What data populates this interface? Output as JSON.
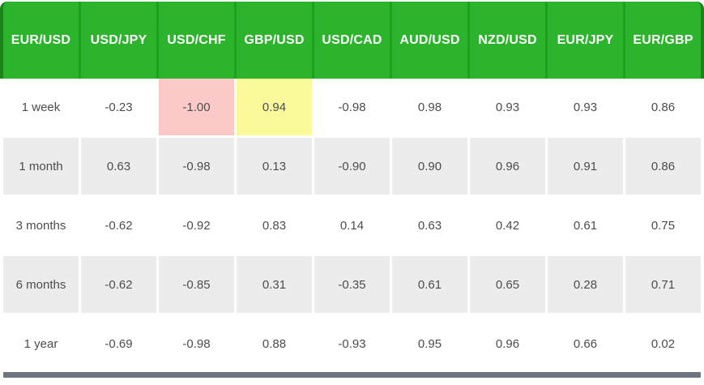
{
  "table": {
    "columns": [
      "EUR/USD",
      "USD/JPY",
      "USD/CHF",
      "GBP/USD",
      "USD/CAD",
      "AUD/USD",
      "NZD/USD",
      "EUR/JPY",
      "EUR/GBP"
    ],
    "rows": [
      {
        "label": "1 week",
        "values": [
          "-0.23",
          "-1.00",
          "0.94",
          "-0.98",
          "0.98",
          "0.93",
          "0.93",
          "0.86"
        ]
      },
      {
        "label": "1 month",
        "values": [
          "0.63",
          "-0.98",
          "0.13",
          "-0.90",
          "0.90",
          "0.96",
          "0.91",
          "0.86"
        ]
      },
      {
        "label": "3 months",
        "values": [
          "-0.62",
          "-0.92",
          "0.83",
          "0.14",
          "0.63",
          "0.42",
          "0.61",
          "0.75"
        ]
      },
      {
        "label": "6 months",
        "values": [
          "-0.62",
          "-0.85",
          "0.31",
          "-0.35",
          "0.61",
          "0.65",
          "0.28",
          "0.71"
        ]
      },
      {
        "label": "1 year",
        "values": [
          "-0.69",
          "-0.98",
          "0.88",
          "-0.93",
          "0.95",
          "0.96",
          "0.66",
          "0.02"
        ]
      }
    ],
    "highlights": [
      {
        "row_index": 0,
        "value_index": 1,
        "column": "USD/CHF",
        "value": "-1.00",
        "style": "extreme-negative",
        "background": "#fcc9c9"
      },
      {
        "row_index": 0,
        "value_index": 2,
        "column": "GBP/USD",
        "value": "0.94",
        "style": "strong-positive",
        "background": "#fafa9b"
      }
    ]
  },
  "chart_data": {
    "type": "table",
    "columns": [
      "EUR/USD",
      "USD/JPY",
      "USD/CHF",
      "GBP/USD",
      "USD/CAD",
      "AUD/USD",
      "NZD/USD",
      "EUR/JPY",
      "EUR/GBP"
    ],
    "row_labels": [
      "1 week",
      "1 month",
      "3 months",
      "6 months",
      "1 year"
    ],
    "series": [
      {
        "name": "1 week",
        "values": [
          -0.23,
          -1.0,
          0.94,
          -0.98,
          0.98,
          0.93,
          0.93,
          0.86
        ]
      },
      {
        "name": "1 month",
        "values": [
          0.63,
          -0.98,
          0.13,
          -0.9,
          0.9,
          0.96,
          0.91,
          0.86
        ]
      },
      {
        "name": "3 months",
        "values": [
          -0.62,
          -0.92,
          0.83,
          0.14,
          0.63,
          0.42,
          0.61,
          0.75
        ]
      },
      {
        "name": "6 months",
        "values": [
          -0.62,
          -0.85,
          0.31,
          -0.35,
          0.61,
          0.65,
          0.28,
          0.71
        ]
      },
      {
        "name": "1 year",
        "values": [
          -0.69,
          -0.98,
          0.88,
          -0.93,
          0.95,
          0.96,
          0.66,
          0.02
        ]
      }
    ]
  },
  "colors": {
    "header_green": "#2cb52c",
    "divider_green": "#219f21",
    "edge_green": "#1b851b",
    "alt_row_gray": "#ececec",
    "highlight_pink": "#fcc9c9",
    "highlight_yellow": "#fafa9b",
    "text_gray": "#4d4d4d",
    "header_text": "#ffffff",
    "scrollbar_gray": "#6e7580"
  }
}
